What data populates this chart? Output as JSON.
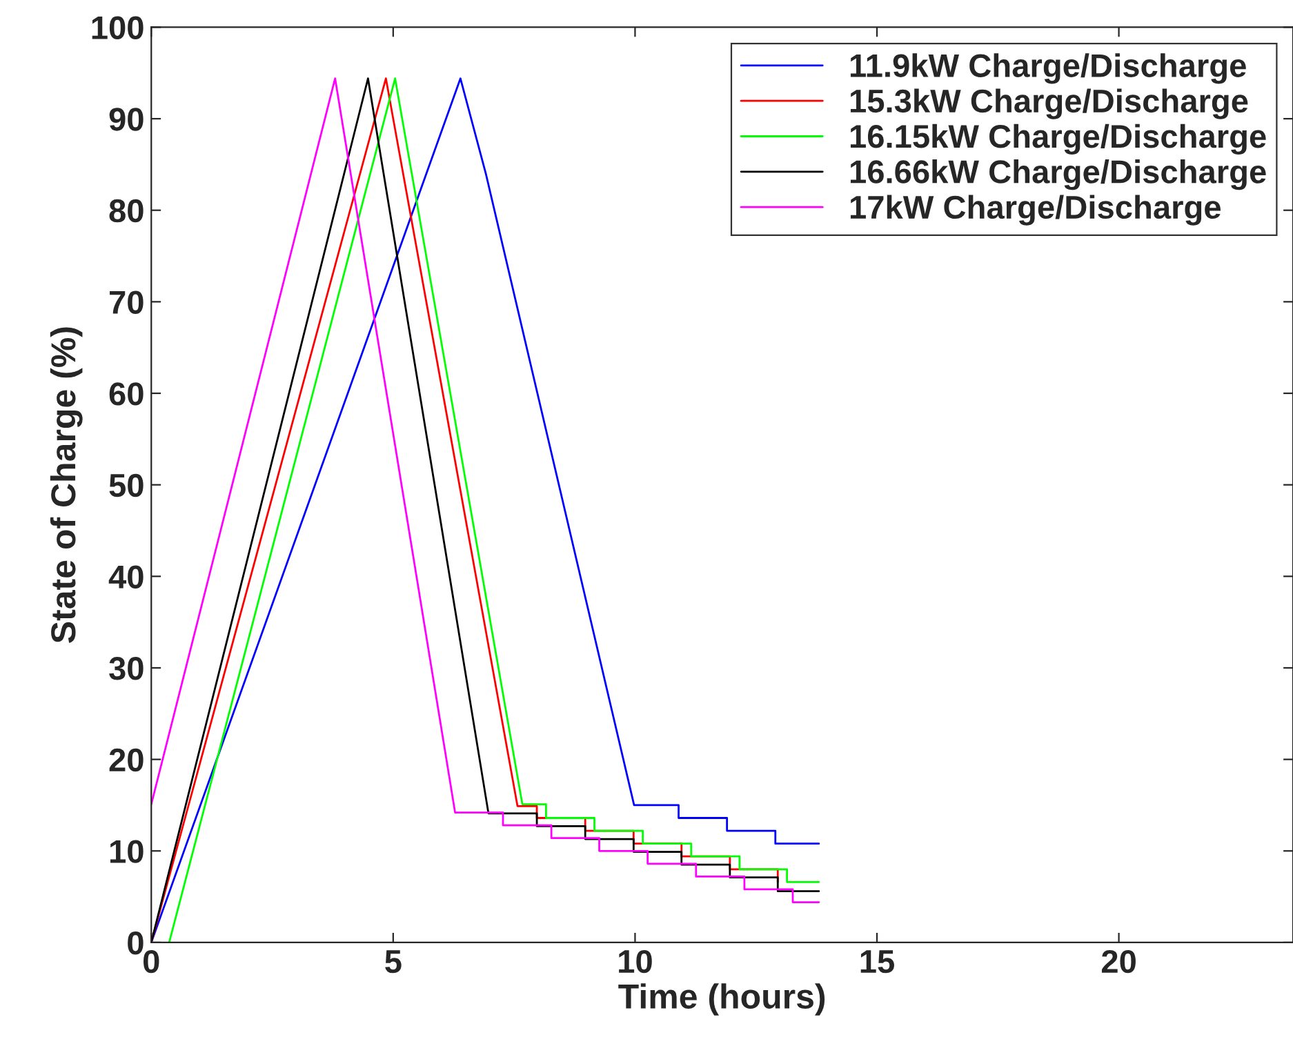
{
  "chart_data": {
    "type": "line",
    "xlabel": "Time (hours)",
    "ylabel": "State of Charge (%)",
    "xlim": [
      0,
      23.6
    ],
    "ylim": [
      0,
      100
    ],
    "xticks": [
      0,
      5,
      10,
      15,
      20
    ],
    "yticks": [
      0,
      10,
      20,
      30,
      40,
      50,
      60,
      70,
      80,
      90,
      100
    ],
    "legend": "top right",
    "grid": false,
    "series": [
      {
        "name": "11.9kW Charge/Discharge",
        "color": "#0000ff",
        "x": [
          0,
          6.39,
          6.92,
          9.98,
          10.9,
          10.9,
          11.9,
          11.9,
          12.9,
          12.9,
          13.8
        ],
        "values": [
          0,
          94.4,
          83.9,
          15.0,
          15.0,
          13.6,
          13.6,
          12.2,
          12.2,
          10.8,
          10.8
        ]
      },
      {
        "name": "15.3kW Charge/Discharge",
        "color": "#ff0000",
        "x": [
          0,
          4.85,
          7.57,
          7.97,
          7.97,
          8.97,
          8.97,
          9.97,
          9.97,
          10.96,
          10.96,
          11.96,
          11.96,
          12.95,
          12.95
        ],
        "values": [
          0,
          94.4,
          14.9,
          14.9,
          13.6,
          13.6,
          12.2,
          12.2,
          10.8,
          10.8,
          9.4,
          9.4,
          8.0,
          8.0,
          6.6
        ]
      },
      {
        "name": "16.15kW Charge/Discharge",
        "color": "#00ff00",
        "x": [
          0.37,
          5.04,
          7.67,
          8.16,
          8.16,
          9.16,
          9.16,
          10.16,
          10.16,
          11.16,
          11.16,
          12.16,
          12.16,
          13.14,
          13.14,
          13.8
        ],
        "values": [
          0,
          94.4,
          15.1,
          15.1,
          13.6,
          13.6,
          12.2,
          12.2,
          10.8,
          10.8,
          9.4,
          9.4,
          8.0,
          8.0,
          6.6,
          6.6
        ]
      },
      {
        "name": "16.66kW Charge/Discharge",
        "color": "#000000",
        "x": [
          0,
          4.48,
          6.97,
          7.97,
          7.97,
          8.97,
          8.97,
          9.97,
          9.97,
          10.96,
          10.96,
          11.96,
          11.96,
          12.95,
          12.95,
          13.8
        ],
        "values": [
          0,
          94.4,
          14.1,
          14.1,
          12.7,
          12.7,
          11.3,
          11.3,
          9.9,
          9.9,
          8.5,
          8.5,
          7.1,
          7.1,
          5.6,
          5.6
        ]
      },
      {
        "name": "17kW Charge/Discharge",
        "color": "#ff00ff",
        "x": [
          0,
          3.8,
          6.28,
          7.27,
          7.27,
          8.27,
          8.27,
          9.26,
          9.26,
          10.26,
          10.26,
          11.26,
          11.26,
          12.26,
          12.26,
          13.26,
          13.26,
          13.8
        ],
        "values": [
          15.1,
          94.4,
          14.2,
          14.2,
          12.8,
          12.8,
          11.4,
          11.4,
          10.0,
          10.0,
          8.6,
          8.6,
          7.2,
          7.2,
          5.8,
          5.8,
          4.4,
          4.4
        ]
      }
    ]
  }
}
